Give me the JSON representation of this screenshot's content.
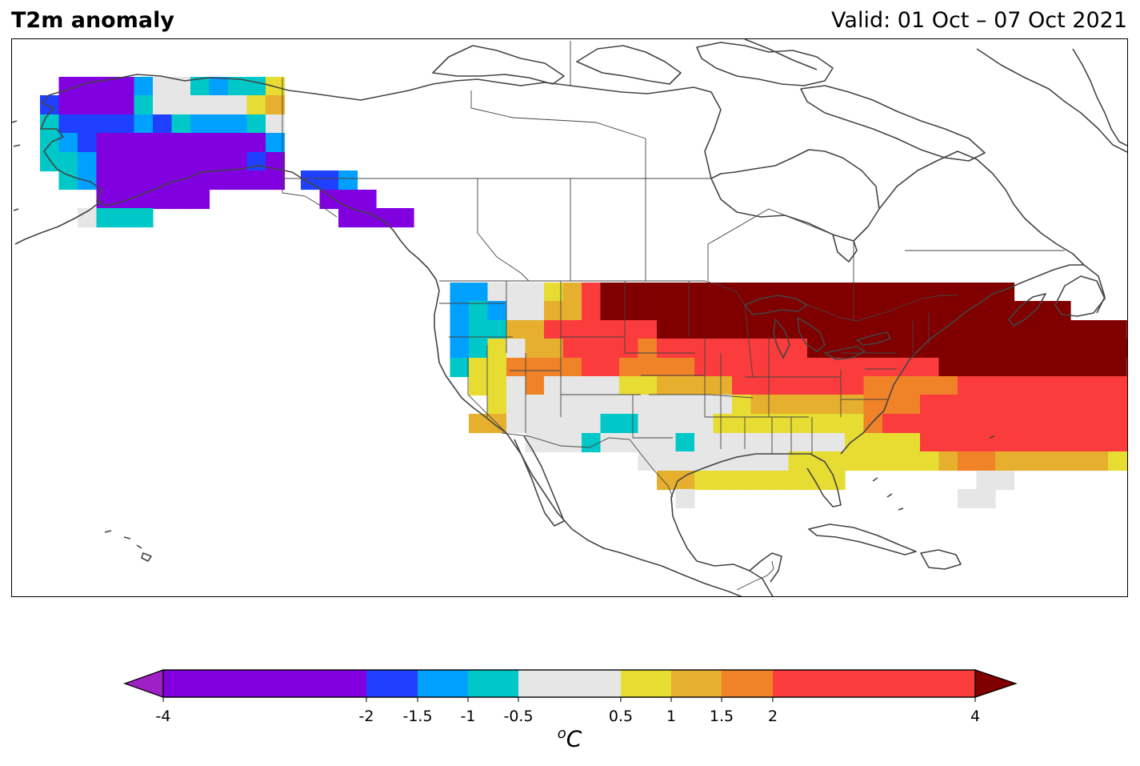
{
  "header": {
    "title": "T2m anomaly",
    "valid": "Valid: 01 Oct – 07 Oct 2021"
  },
  "colorbar": {
    "unit_prefix": "o",
    "unit_main": "C",
    "ticks": [
      "-4",
      "-2",
      "-1.5",
      "-1",
      "-0.5",
      "0.5",
      "1",
      "1.5",
      "2",
      "4"
    ],
    "levels": [
      {
        "from": -4,
        "to": -2,
        "color": "#8000e0"
      },
      {
        "from": -2,
        "to": -1.5,
        "color": "#2040ff"
      },
      {
        "from": -1.5,
        "to": -1,
        "color": "#00a0ff"
      },
      {
        "from": -1,
        "to": -0.5,
        "color": "#00c8c8"
      },
      {
        "from": -0.5,
        "to": 0.5,
        "color": "#e6e6e6"
      },
      {
        "from": 0.5,
        "to": 1,
        "color": "#e6dc32"
      },
      {
        "from": 1,
        "to": 1.5,
        "color": "#e6af2d"
      },
      {
        "from": 1.5,
        "to": 2,
        "color": "#f08228"
      },
      {
        "from": 2,
        "to": 4,
        "color": "#fa3c3c"
      }
    ],
    "under_color": "#a020c8",
    "over_color": "#800000"
  },
  "map": {
    "region": "North America",
    "projection": "Plate Carree",
    "coastline_color": "#444444"
  }
}
